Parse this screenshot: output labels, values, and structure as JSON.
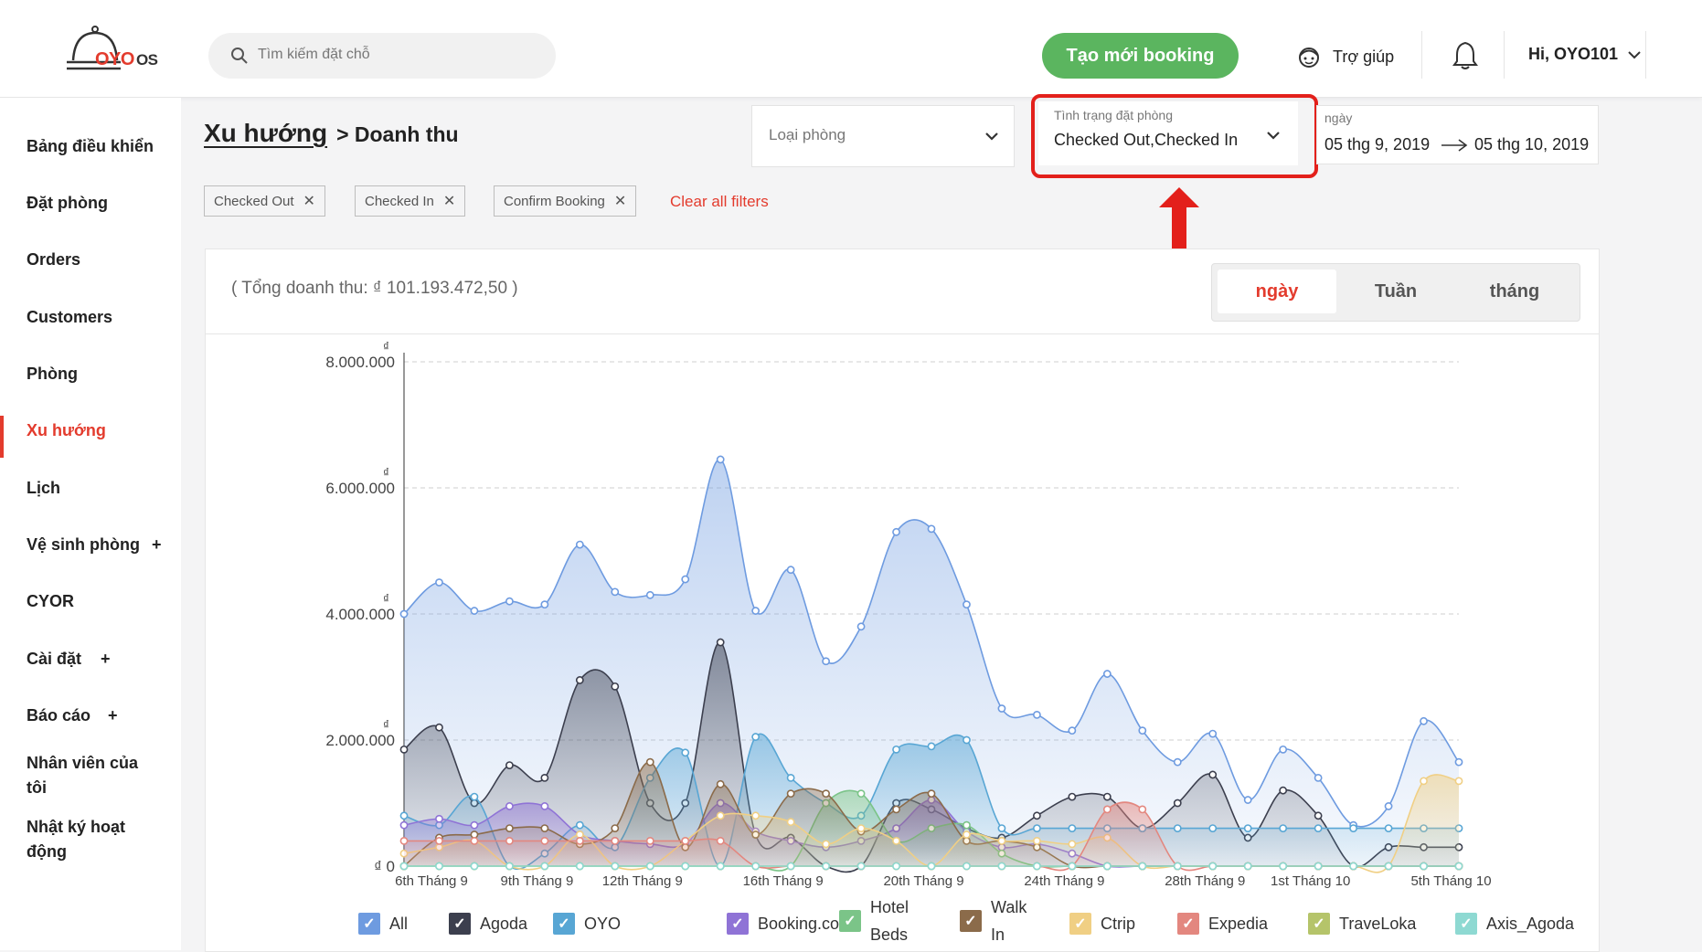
{
  "app": {
    "logo_brand": "OYO",
    "logo_suffix": "OS"
  },
  "header": {
    "search_placeholder": "Tìm kiếm đặt chỗ",
    "new_booking_label": "Tạo mới booking",
    "help_label": "Trợ giúp",
    "user_label": "Hi, OYO101"
  },
  "sidebar": {
    "items": [
      {
        "label": "Bảng điều khiển"
      },
      {
        "label": "Đặt phòng"
      },
      {
        "label": "Orders"
      },
      {
        "label": "Customers"
      },
      {
        "label": "Phòng"
      },
      {
        "label": "Xu hướng",
        "active": true
      },
      {
        "label": "Lịch"
      },
      {
        "label": "Vệ sinh phòng",
        "expand": "+"
      },
      {
        "label": "CYOR"
      },
      {
        "label": "Cài đặt",
        "expand": "+"
      },
      {
        "label": "Báo cáo",
        "expand": "+"
      },
      {
        "label": "Nhân viên của tôi"
      },
      {
        "label": "Nhật ký hoạt động"
      }
    ]
  },
  "breadcrumb": {
    "root": "Xu hướng",
    "current": "> Doanh thu"
  },
  "filters": {
    "room_type": {
      "placeholder": "Loại phòng"
    },
    "booking_status": {
      "label": "Tình trạng đặt phòng",
      "value": "Checked Out,Checked In"
    },
    "date": {
      "label": "ngày",
      "from": "05 thg 9, 2019",
      "to": "05 thg 10, 2019"
    },
    "chips": [
      "Checked Out",
      "Checked In",
      "Confirm Booking"
    ],
    "clear_label": "Clear all filters"
  },
  "card": {
    "total_label": "( Tổng doanh thu: ₫ 101.193.472,50 )",
    "tabs": [
      {
        "label": "ngày",
        "active": true
      },
      {
        "label": "Tuần"
      },
      {
        "label": "tháng"
      }
    ]
  },
  "chart_data": {
    "type": "area",
    "y_ticks": [
      "₫ 0",
      "2.000.000",
      "4.000.000",
      "6.000.000",
      "8.000.000"
    ],
    "y_currency_symbol": "₫",
    "ylim": [
      0,
      8000000
    ],
    "x_tick_labels": [
      "6th Tháng 9",
      "9th Tháng 9",
      "12th Tháng 9",
      "16th Tháng 9",
      "20th Tháng 9",
      "24th Tháng 9",
      "28th Tháng 9",
      "1st Tháng 10",
      "5th Tháng 10"
    ],
    "x_tick_index": [
      0,
      3,
      6,
      10,
      14,
      18,
      22,
      25,
      29
    ],
    "points": 31,
    "series": [
      {
        "name": "All",
        "color": "#6e9be0",
        "values": [
          4000000,
          4500000,
          4050000,
          4200000,
          4150000,
          5100000,
          4350000,
          4300000,
          4550000,
          6450000,
          4050000,
          4700000,
          3250000,
          3800000,
          5300000,
          5350000,
          4150000,
          2500000,
          2400000,
          2150000,
          3050000,
          2150000,
          1650000,
          2100000,
          1050000,
          1850000,
          1400000,
          650000,
          950000,
          2300000,
          1650000
        ]
      },
      {
        "name": "Agoda",
        "color": "#3c3f4e",
        "values": [
          1850000,
          2200000,
          1000000,
          1600000,
          1400000,
          2950000,
          2850000,
          1000000,
          1000000,
          3550000,
          500000,
          450000,
          0,
          0,
          1000000,
          900000,
          600000,
          450000,
          800000,
          1100000,
          1100000,
          600000,
          1000000,
          1450000,
          450000,
          1200000,
          800000,
          0,
          300000,
          300000,
          300000
        ]
      },
      {
        "name": "OYO",
        "color": "#58a6d4",
        "values": [
          800000,
          650000,
          1100000,
          0,
          200000,
          650000,
          300000,
          1400000,
          1800000,
          0,
          2050000,
          1400000,
          1000000,
          800000,
          1850000,
          1900000,
          2000000,
          600000,
          600000,
          600000,
          600000,
          600000,
          600000,
          600000,
          600000,
          600000,
          600000,
          600000,
          600000,
          600000,
          600000
        ]
      },
      {
        "name": "Booking.com",
        "color": "#8f73d6",
        "values": [
          650000,
          750000,
          650000,
          950000,
          950000,
          500000,
          400000,
          350000,
          350000,
          1000000,
          550000,
          400000,
          300000,
          400000,
          600000,
          1050000,
          550000,
          300000,
          350000,
          200000,
          0,
          0,
          0,
          0,
          0,
          0,
          0,
          0,
          0,
          0,
          0
        ]
      },
      {
        "name": "Hotel Beds",
        "color": "#7bc488",
        "values": [
          0,
          0,
          0,
          0,
          0,
          0,
          0,
          0,
          0,
          0,
          0,
          0,
          1000000,
          1150000,
          400000,
          600000,
          650000,
          200000,
          0,
          0,
          0,
          0,
          0,
          0,
          0,
          0,
          0,
          0,
          0,
          0,
          0
        ]
      },
      {
        "name": "Walk In",
        "color": "#8b6b4a",
        "values": [
          0,
          450000,
          500000,
          600000,
          600000,
          350000,
          600000,
          1650000,
          300000,
          1300000,
          500000,
          1150000,
          1150000,
          550000,
          900000,
          1150000,
          400000,
          400000,
          300000,
          0,
          0,
          0,
          0,
          0,
          0,
          0,
          0,
          0,
          0,
          0,
          0
        ]
      },
      {
        "name": "Ctrip",
        "color": "#f0cf84",
        "values": [
          200000,
          300000,
          400000,
          0,
          0,
          500000,
          0,
          0,
          400000,
          800000,
          800000,
          700000,
          350000,
          600000,
          400000,
          0,
          500000,
          400000,
          400000,
          350000,
          450000,
          0,
          0,
          0,
          0,
          0,
          0,
          0,
          0,
          1350000,
          1350000
        ]
      },
      {
        "name": "Expedia",
        "color": "#e3877f",
        "values": [
          400000,
          400000,
          400000,
          400000,
          400000,
          400000,
          400000,
          400000,
          400000,
          400000,
          0,
          0,
          0,
          0,
          0,
          0,
          0,
          0,
          0,
          0,
          900000,
          900000,
          0,
          0,
          0,
          0,
          0,
          0,
          0,
          0,
          0
        ]
      },
      {
        "name": "TraveLoka",
        "color": "#b5c46a",
        "values": [
          0,
          0,
          0,
          0,
          0,
          0,
          0,
          0,
          0,
          0,
          0,
          0,
          0,
          0,
          0,
          0,
          0,
          0,
          0,
          0,
          0,
          0,
          0,
          0,
          0,
          0,
          0,
          0,
          0,
          0,
          0
        ]
      },
      {
        "name": "Axis_Agoda",
        "color": "#8ed9d2",
        "values": [
          0,
          0,
          0,
          0,
          0,
          0,
          0,
          0,
          0,
          0,
          0,
          0,
          0,
          0,
          0,
          0,
          0,
          0,
          0,
          0,
          0,
          0,
          0,
          0,
          0,
          0,
          0,
          0,
          0,
          0,
          0
        ]
      }
    ]
  }
}
